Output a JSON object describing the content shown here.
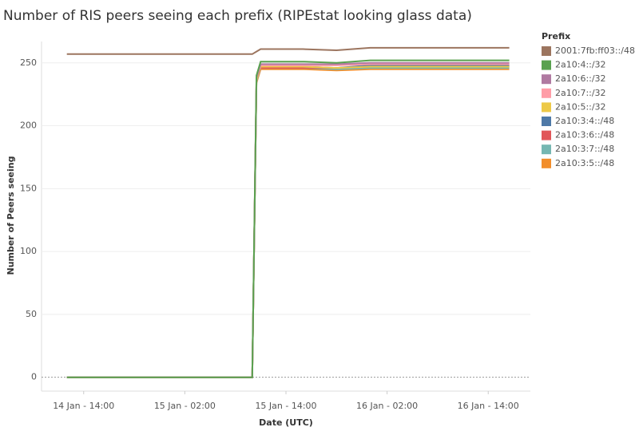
{
  "chart_data": {
    "type": "line",
    "title": "Number of RIS peers seeing each prefix  (RIPEstat looking glass data)",
    "x_label": "Date (UTC)",
    "y_label": "Number of Peers seeing",
    "legend_title": "Prefix",
    "legend_position": "right",
    "grid": true,
    "x": [
      "14 Jan 12:00",
      "15 Jan 10:00",
      "15 Jan 10:30",
      "15 Jan 11:00",
      "15 Jan 16:00",
      "15 Jan 20:00",
      "16 Jan 00:00",
      "16 Jan 08:00",
      "16 Jan 16:30"
    ],
    "xlim": [
      "14 Jan 09:00",
      "16 Jan 19:00"
    ],
    "xticks": [
      {
        "value": "14 Jan 14:00",
        "label": "14 Jan - 14:00"
      },
      {
        "value": "15 Jan 02:00",
        "label": "15 Jan - 02:00"
      },
      {
        "value": "15 Jan 14:00",
        "label": "15 Jan - 14:00"
      },
      {
        "value": "16 Jan 02:00",
        "label": "16 Jan - 02:00"
      },
      {
        "value": "16 Jan 14:00",
        "label": "16 Jan - 14:00"
      }
    ],
    "ylim": [
      -11,
      267
    ],
    "yticks": [
      0,
      50,
      100,
      150,
      200,
      250
    ],
    "series": [
      {
        "name": "2001:7fb:ff03::/48",
        "color": "#9c755f",
        "values": [
          257,
          257,
          259,
          261,
          261,
          260,
          262,
          262,
          262
        ]
      },
      {
        "name": "2a10:4::/32",
        "color": "#59a14f",
        "values": [
          0,
          0,
          240,
          251,
          251,
          250,
          252,
          252,
          252
        ]
      },
      {
        "name": "2a10:6::/32",
        "color": "#b07aa1",
        "values": [
          0,
          0,
          238,
          249,
          249,
          249,
          250,
          250,
          250
        ]
      },
      {
        "name": "2a10:7::/32",
        "color": "#ff9da7",
        "values": [
          0,
          0,
          238,
          248,
          248,
          248,
          249,
          249,
          249
        ]
      },
      {
        "name": "2a10:5::/32",
        "color": "#edc948",
        "values": [
          0,
          0,
          236,
          247,
          247,
          246,
          247,
          247,
          247
        ]
      },
      {
        "name": "2a10:3:4::/48",
        "color": "#4e79a7",
        "values": [
          0,
          0,
          236,
          247,
          247,
          246,
          248,
          248,
          248
        ]
      },
      {
        "name": "2a10:3:6::/48",
        "color": "#e15759",
        "values": [
          0,
          0,
          236,
          246,
          246,
          246,
          247,
          247,
          247
        ]
      },
      {
        "name": "2a10:3:7::/48",
        "color": "#76b7b2",
        "values": [
          0,
          0,
          235,
          246,
          246,
          245,
          246,
          246,
          246
        ]
      },
      {
        "name": "2a10:3:5::/48",
        "color": "#f28e2b",
        "values": [
          0,
          0,
          234,
          245,
          245,
          244,
          245,
          245,
          245
        ]
      }
    ]
  }
}
